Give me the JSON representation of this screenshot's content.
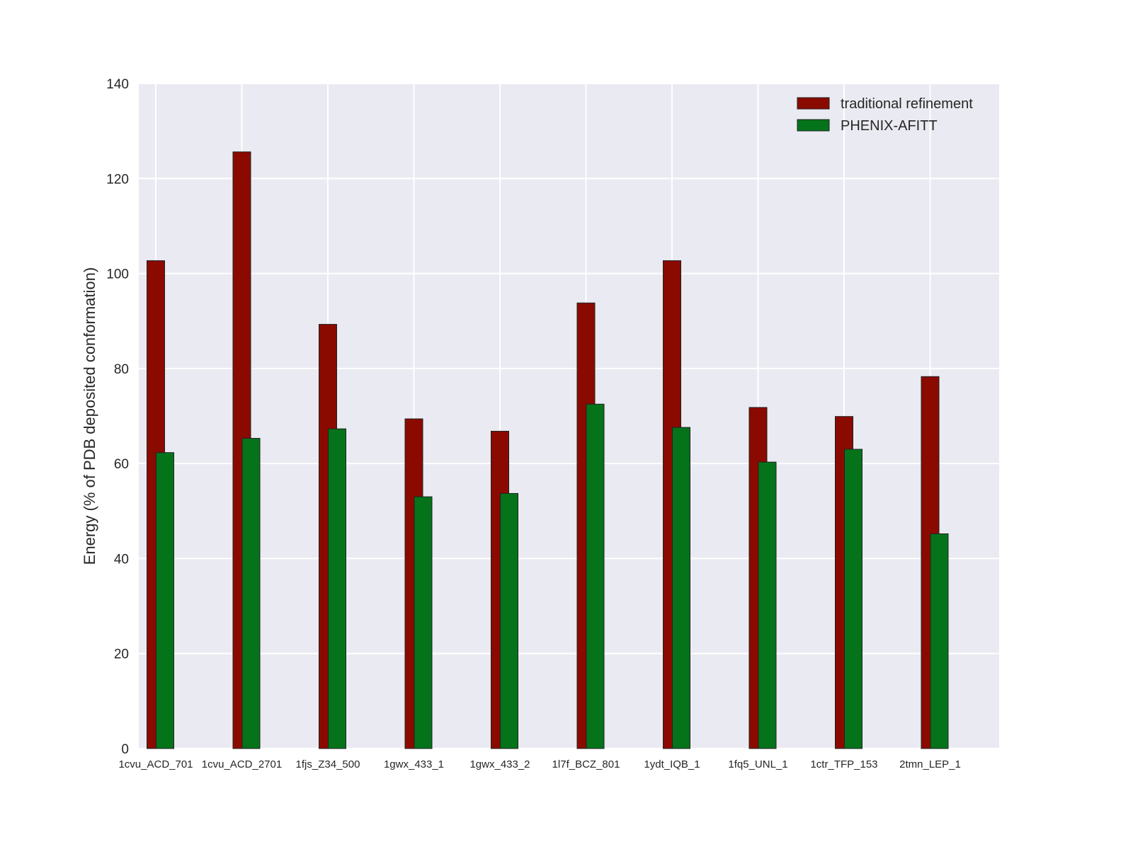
{
  "chart_data": {
    "type": "bar",
    "title": "",
    "xlabel": "",
    "ylabel": "Energy (% of PDB deposited conformation)",
    "ylim": [
      0,
      140
    ],
    "yticks": [
      0,
      20,
      40,
      60,
      80,
      100,
      120,
      140
    ],
    "grid": true,
    "legend_position": "top-right",
    "background_color": "#EAEAF2",
    "categories": [
      "1cvu_ACD_701",
      "1cvu_ACD_2701",
      "1fjs_Z34_500",
      "1gwx_433_1",
      "1gwx_433_2",
      "1l7f_BCZ_801",
      "1ydt_IQB_1",
      "1fq5_UNL_1",
      "1ctr_TFP_153",
      "2tmn_LEP_1"
    ],
    "series": [
      {
        "name": "traditional refinement",
        "color": "#8B0A00",
        "values": [
          102.7,
          125.6,
          89.3,
          69.4,
          66.8,
          93.8,
          102.7,
          71.8,
          69.9,
          78.3
        ]
      },
      {
        "name": "PHENIX-AFITT",
        "color": "#04731A",
        "values": [
          62.3,
          65.3,
          67.3,
          53.0,
          53.7,
          72.5,
          67.6,
          60.3,
          63.0,
          45.2
        ]
      }
    ]
  }
}
